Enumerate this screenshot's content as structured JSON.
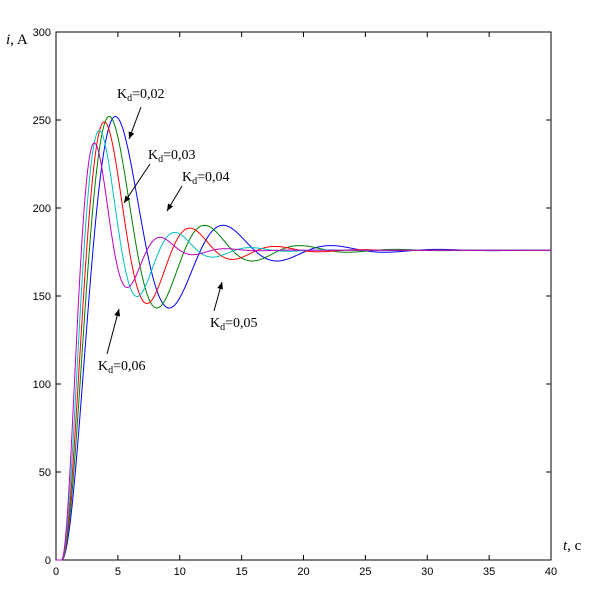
{
  "chart_data": {
    "type": "line",
    "xlabel": {
      "var": "t",
      "unit": ", c"
    },
    "ylabel": {
      "var": "i",
      "unit": ", A"
    },
    "xlim": [
      0,
      40
    ],
    "ylim": [
      0,
      300
    ],
    "xticks": [
      0,
      5,
      10,
      15,
      20,
      25,
      30,
      35,
      40
    ],
    "yticks": [
      0,
      50,
      100,
      150,
      200,
      250,
      300
    ],
    "grid": false,
    "legend": "none",
    "steady_value": 176,
    "series": [
      {
        "color": "#0000ff",
        "peak": 252,
        "t_peak": 4.8
      },
      {
        "color": "#008000",
        "peak": 252,
        "t_peak": 4.3
      },
      {
        "color": "#ff0000",
        "peak": 249,
        "t_peak": 3.9
      },
      {
        "color": "#00bfbf",
        "peak": 244,
        "t_peak": 3.5
      },
      {
        "color": "#bf00bf",
        "peak": 237,
        "t_peak": 3.1
      }
    ],
    "annotations": [
      {
        "text_main": "K",
        "text_sub": "d",
        "text_value": "=0,02"
      },
      {
        "text_main": "K",
        "text_sub": "d",
        "text_value": "=0,03"
      },
      {
        "text_main": "K",
        "text_sub": "d",
        "text_value": "=0,04"
      },
      {
        "text_main": "K",
        "text_sub": "d",
        "text_value": "=0,05"
      },
      {
        "text_main": "K",
        "text_sub": "d",
        "text_value": "=0,06"
      }
    ]
  }
}
